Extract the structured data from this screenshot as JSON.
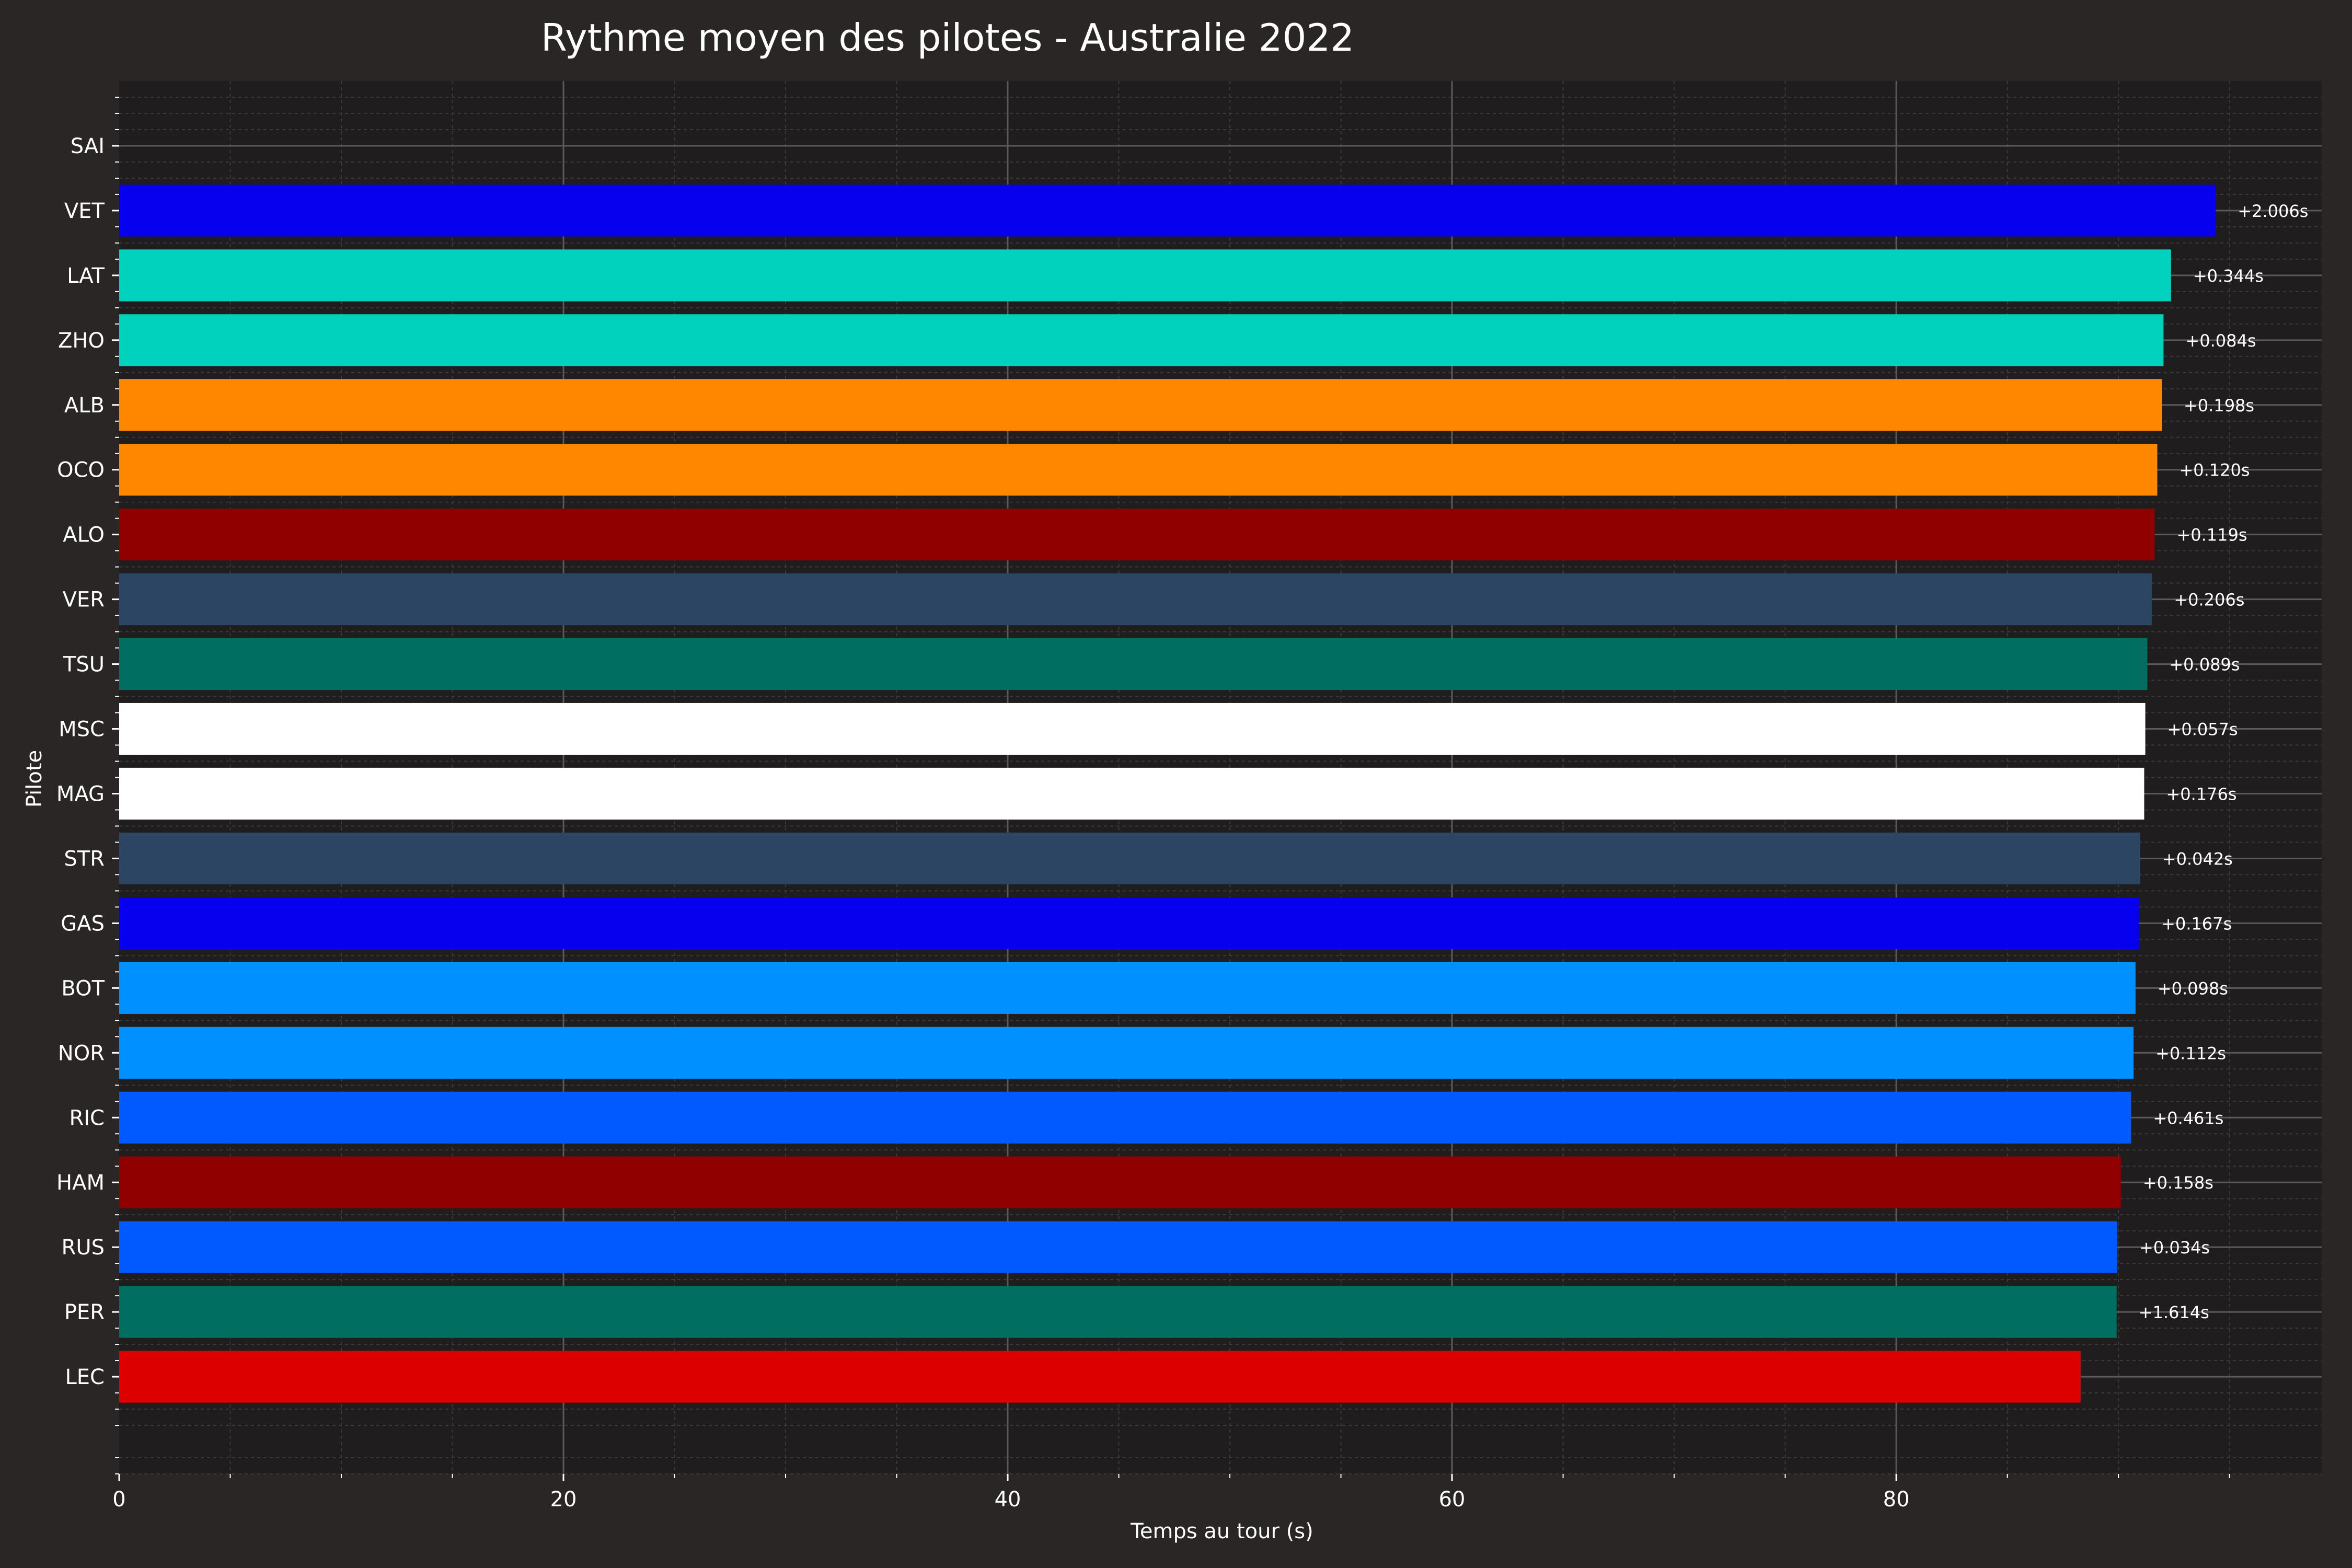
{
  "chart_data": {
    "type": "bar",
    "orientation": "horizontal",
    "title": "Rythme moyen des pilotes - Australie 2022",
    "xlabel": "Temps au tour (s)",
    "ylabel": "Pilote",
    "xlim": [
      0,
      99.15
    ],
    "xticks": [
      "0",
      "20",
      "40",
      "60",
      "80"
    ],
    "grid": true,
    "categories": [
      "SAI",
      "VET",
      "LAT",
      "ZHO",
      "ALB",
      "OCO",
      "ALO",
      "VER",
      "TSU",
      "MSC",
      "MAG",
      "STR",
      "GAS",
      "BOT",
      "NOR",
      "RIC",
      "HAM",
      "RUS",
      "PER",
      "LEC"
    ],
    "values": [
      0,
      94.38,
      92.37,
      92.03,
      91.95,
      91.75,
      91.63,
      91.51,
      91.3,
      91.21,
      91.16,
      90.98,
      90.94,
      90.77,
      90.68,
      90.57,
      90.11,
      89.95,
      89.92,
      88.3
    ],
    "data_labels": [
      "",
      "+2.006s",
      "+0.344s",
      "+0.084s",
      "+0.198s",
      "+0.120s",
      "+0.119s",
      "+0.206s",
      "+0.089s",
      "+0.057s",
      "+0.176s",
      "+0.042s",
      "+0.167s",
      "+0.098s",
      "+0.112s",
      "+0.461s",
      "+0.158s",
      "+0.034s",
      "+1.614s",
      ""
    ],
    "colors": [
      "#dc0000",
      "#006f62",
      "#005aff",
      "#900000",
      "#005aff",
      "#0090ff",
      "#0090ff",
      "#0600ef",
      "#2b4562",
      "#ffffff",
      "#ffffff",
      "#006f62",
      "#2b4562",
      "#900000",
      "#ff8700",
      "#ff8700",
      "#00d2be",
      "#00d2be",
      "#0600ef",
      "#dc0000"
    ]
  },
  "theme": {
    "background": "#292625",
    "plot_background": "#1f1d1d",
    "text": "#ffffff",
    "grid_major": "#5a5a5a",
    "grid_minor": "#3d3a3a"
  }
}
